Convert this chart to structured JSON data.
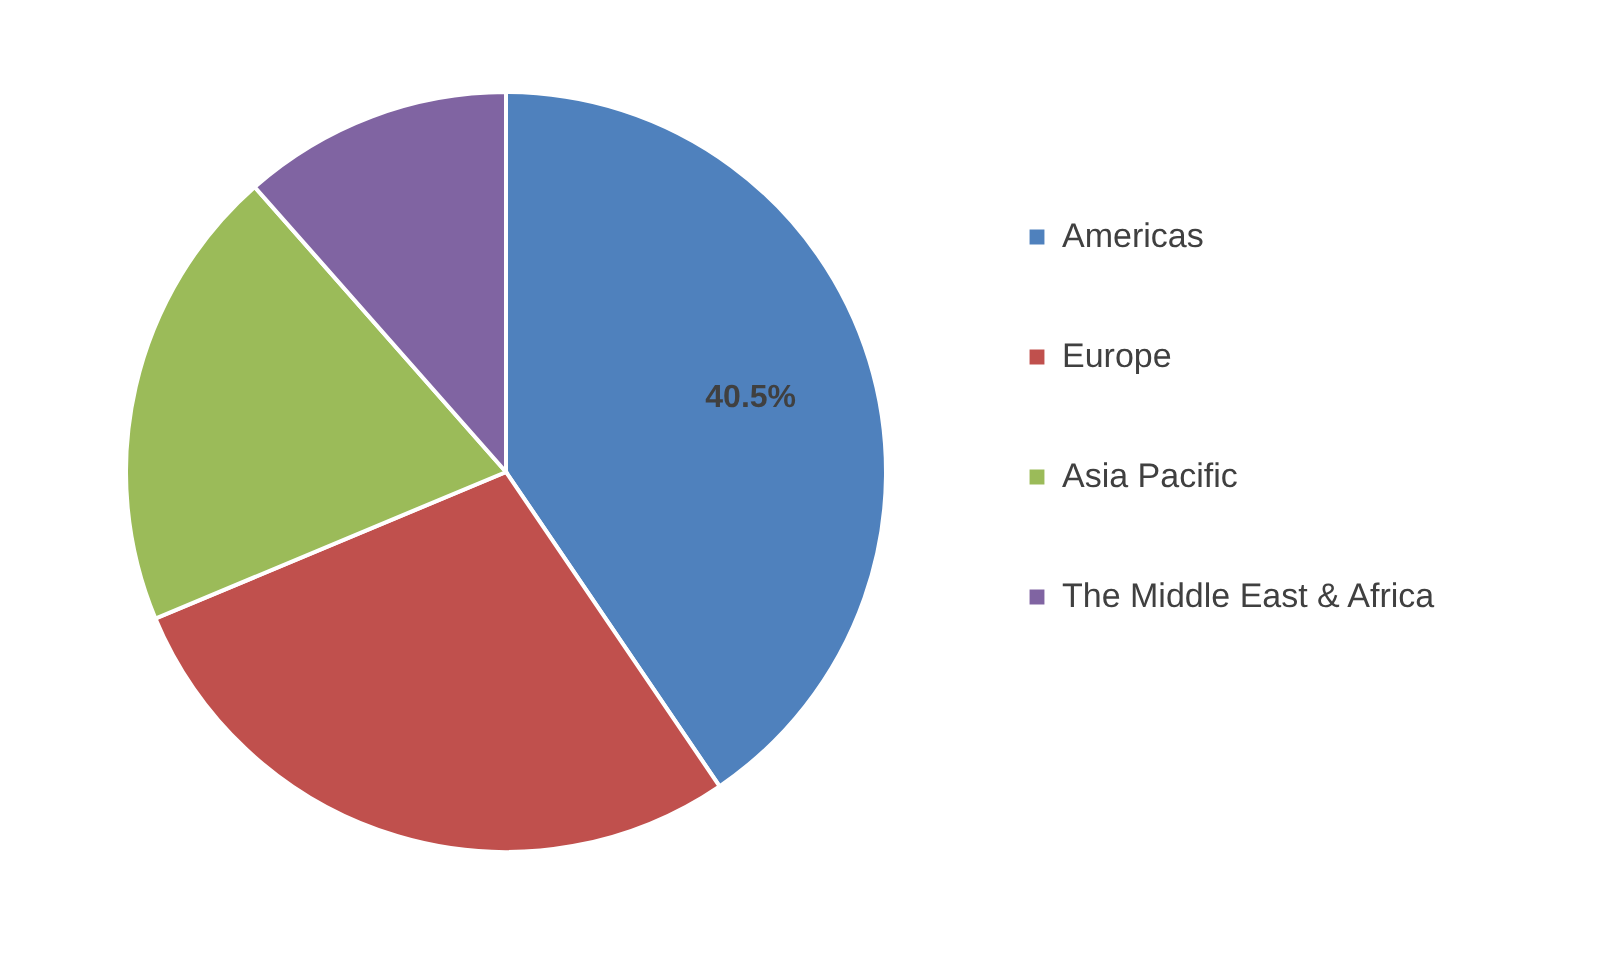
{
  "chart_data": {
    "type": "pie",
    "categories": [
      "Americas",
      "Europe",
      "Asia Pacific",
      "The Middle East & Africa"
    ],
    "values": [
      40.5,
      28.2,
      19.8,
      11.5
    ],
    "colors": [
      "#4f81bd",
      "#c0504d",
      "#9bbb59",
      "#8064a2"
    ],
    "value_labels": [
      "40.5%",
      null,
      null,
      null
    ],
    "legend": "right"
  }
}
